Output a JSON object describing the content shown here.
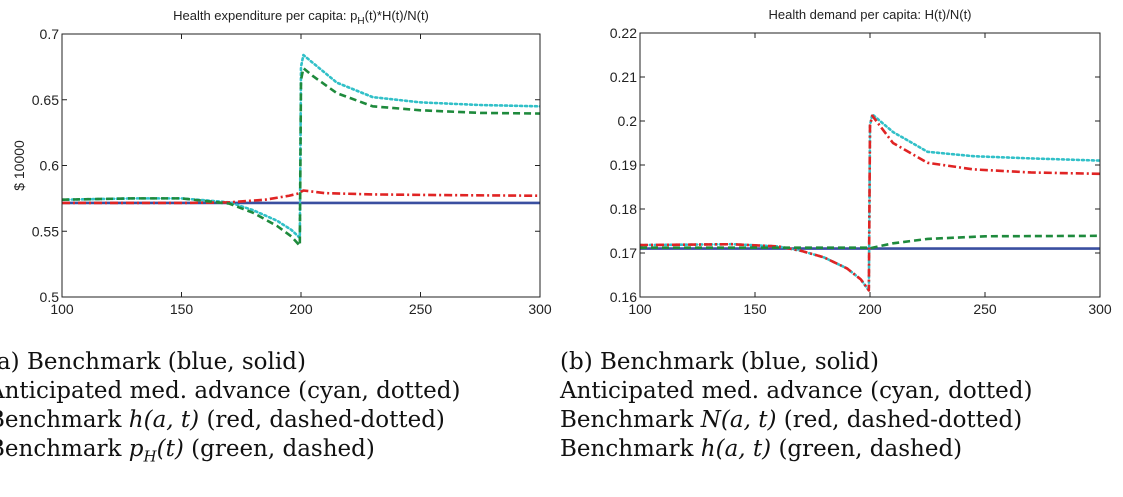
{
  "chart_data": [
    {
      "type": "line",
      "title_main": "Health expenditure per capita: p",
      "title_sub": "H",
      "title_rest": "(t)*H(t)/N(t)",
      "ylabel": "$ 10000",
      "xlim": [
        100,
        300
      ],
      "ylim": [
        0.5,
        0.7
      ],
      "xticks": [
        100,
        150,
        200,
        250,
        300
      ],
      "yticks": [
        0.5,
        0.55,
        0.6,
        0.65,
        0.7
      ],
      "ytick_labels": [
        "0.5",
        "0.55",
        "0.6",
        "0.65",
        "0.7"
      ],
      "series": [
        {
          "color": "#3a4fa0",
          "dash": "solid",
          "x": [
            100,
            300
          ],
          "y": [
            0.5715,
            0.5715
          ]
        },
        {
          "color": "#31c0c8",
          "dash": "dotted",
          "x": [
            100,
            130,
            150,
            170,
            180,
            190,
            196,
            199.5,
            200,
            201,
            205,
            215,
            230,
            250,
            275,
            300
          ],
          "y": [
            0.574,
            0.575,
            0.575,
            0.572,
            0.566,
            0.558,
            0.551,
            0.545,
            0.675,
            0.684,
            0.678,
            0.663,
            0.652,
            0.648,
            0.646,
            0.645
          ]
        },
        {
          "color": "#e02424",
          "dash": "dashdot",
          "x": [
            100,
            150,
            170,
            185,
            195,
            199.5,
            200,
            201,
            210,
            230,
            260,
            300
          ],
          "y": [
            0.5715,
            0.5715,
            0.572,
            0.574,
            0.577,
            0.579,
            0.58,
            0.581,
            0.579,
            0.578,
            0.5775,
            0.577
          ]
        },
        {
          "color": "#1e8a3c",
          "dash": "dashed",
          "x": [
            100,
            130,
            150,
            170,
            180,
            190,
            196,
            199.5,
            200,
            201,
            205,
            215,
            230,
            250,
            275,
            300
          ],
          "y": [
            0.574,
            0.575,
            0.575,
            0.571,
            0.564,
            0.554,
            0.546,
            0.539,
            0.665,
            0.674,
            0.668,
            0.655,
            0.645,
            0.642,
            0.64,
            0.6395
          ]
        }
      ],
      "caption": [
        {
          "pre": "(a) Benchmark (blue, solid)",
          "math": "",
          "post": ""
        },
        {
          "pre": "Anticipated med. advance (cyan, dotted)",
          "math": "",
          "post": ""
        },
        {
          "pre": "Benchmark ",
          "math": "h(a, t)",
          "post": " (red, dashed-dotted)"
        },
        {
          "pre": "Benchmark ",
          "math": "p_H(t)",
          "post": " (green, dashed)"
        }
      ]
    },
    {
      "type": "line",
      "title_main": "Health demand per capita: H(t)/N(t)",
      "title_sub": "",
      "title_rest": "",
      "ylabel": "",
      "xlim": [
        100,
        300
      ],
      "ylim": [
        0.16,
        0.22
      ],
      "xticks": [
        100,
        150,
        200,
        250,
        300
      ],
      "yticks": [
        0.16,
        0.17,
        0.18,
        0.19,
        0.2,
        0.21,
        0.22
      ],
      "ytick_labels": [
        "0.16",
        "0.17",
        "0.18",
        "0.19",
        "0.2",
        "0.21",
        "0.22"
      ],
      "series": [
        {
          "color": "#3a4fa0",
          "dash": "solid",
          "x": [
            100,
            300
          ],
          "y": [
            0.171,
            0.171
          ]
        },
        {
          "color": "#31c0c8",
          "dash": "dotted",
          "x": [
            100,
            140,
            160,
            170,
            180,
            190,
            196,
            199.5,
            200,
            201,
            210,
            225,
            245,
            270,
            300
          ],
          "y": [
            0.1718,
            0.172,
            0.1715,
            0.1705,
            0.169,
            0.1665,
            0.164,
            0.1615,
            0.199,
            0.2015,
            0.1975,
            0.193,
            0.192,
            0.1915,
            0.191
          ]
        },
        {
          "color": "#e02424",
          "dash": "dashdot",
          "x": [
            100,
            140,
            160,
            170,
            180,
            190,
            196,
            199.5,
            200,
            201,
            210,
            225,
            245,
            270,
            300
          ],
          "y": [
            0.1718,
            0.172,
            0.1715,
            0.1705,
            0.169,
            0.1665,
            0.164,
            0.1615,
            0.199,
            0.2012,
            0.195,
            0.1905,
            0.189,
            0.1883,
            0.188
          ]
        },
        {
          "color": "#1e8a3c",
          "dash": "dashed",
          "x": [
            100,
            199,
            200,
            201,
            210,
            225,
            250,
            300
          ],
          "y": [
            0.1712,
            0.1712,
            0.171,
            0.1712,
            0.1722,
            0.1732,
            0.1738,
            0.1739
          ]
        }
      ],
      "caption": [
        {
          "pre": "(b) Benchmark (blue, solid)",
          "math": "",
          "post": ""
        },
        {
          "pre": "Anticipated med. advance (cyan, dotted)",
          "math": "",
          "post": ""
        },
        {
          "pre": "Benchmark ",
          "math": "N(a, t)",
          "post": " (red, dashed-dotted)"
        },
        {
          "pre": "Benchmark ",
          "math": "h(a, t)",
          "post": " (green, dashed)"
        }
      ]
    }
  ]
}
